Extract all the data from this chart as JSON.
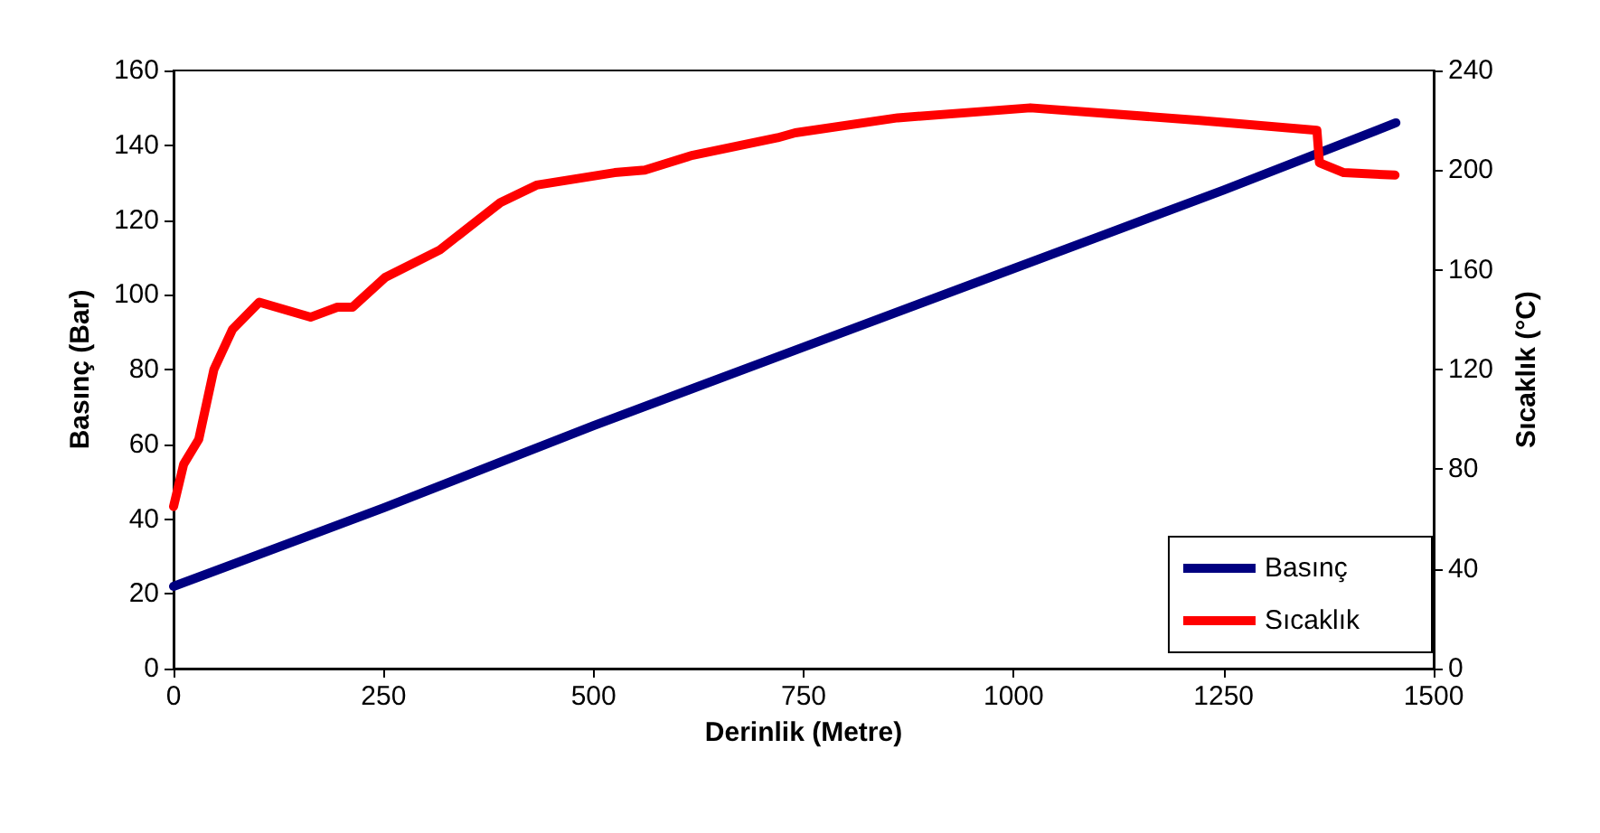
{
  "chart_data": {
    "type": "line",
    "xlabel": "Derinlik (Metre)",
    "ylabel": "Basınç (Bar)",
    "y2label": "Sıcaklık (°C)",
    "xlim": [
      0,
      1500
    ],
    "xticks": [
      0,
      250,
      500,
      750,
      1000,
      1250,
      1500
    ],
    "ylim": [
      0,
      160
    ],
    "yticks": [
      0,
      20,
      40,
      60,
      80,
      100,
      120,
      140,
      160
    ],
    "y2lim": [
      0,
      240
    ],
    "y2ticks": [
      0,
      40,
      80,
      120,
      160,
      200,
      240
    ],
    "grid": false,
    "legend": "bottom right",
    "marker": "none",
    "line_style": "solid",
    "series": [
      {
        "name": "Basınç",
        "color": "#000080",
        "x": [
          0,
          250,
          500,
          750,
          1000,
          1250,
          1455
        ],
        "values": [
          22,
          43,
          65,
          86,
          107,
          128,
          146
        ]
      },
      {
        "name": "Sıcaklık",
        "color": "#ff0000",
        "axis": "y2",
        "x": [
          0,
          12,
          30,
          48,
          70,
          102,
          163,
          195,
          213,
          252,
          317,
          389,
          432,
          525,
          561,
          618,
          719,
          740,
          862,
          1020,
          1221,
          1361,
          1364,
          1393,
          1454
        ],
        "values": [
          65,
          82,
          92,
          120,
          136,
          147,
          141,
          145,
          145,
          157,
          168,
          187,
          194,
          199,
          200,
          206,
          213,
          215,
          221,
          225,
          220,
          216,
          203,
          199,
          198
        ]
      }
    ]
  }
}
